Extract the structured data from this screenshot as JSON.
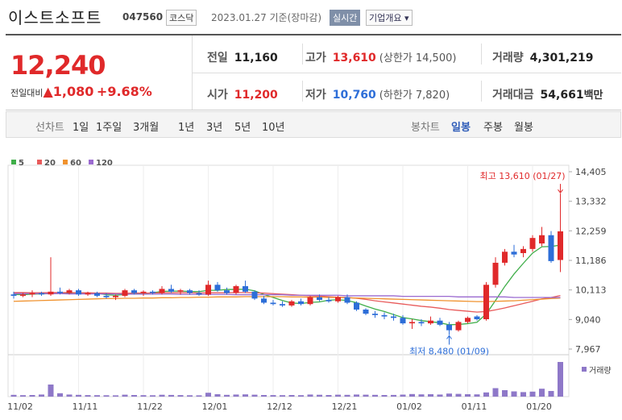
{
  "header": {
    "name": "이스트소프트",
    "code": "047560",
    "market": "코스닥",
    "date": "2023.01.27 기준(장마감)",
    "realtime": "실시간",
    "company": "기업개요"
  },
  "price": {
    "current": "12,240",
    "change_label": "전일대비",
    "change": "1,080",
    "change_pct": "+9.68%"
  },
  "stats": [
    [
      {
        "label": "전일",
        "value": "11,160"
      },
      {
        "label": "고가",
        "value": "13,610",
        "extra": "(상한가 14,500)"
      },
      {
        "label": "거래량",
        "value": "4,301,219"
      }
    ],
    [
      {
        "label": "시가",
        "value": "11,200"
      },
      {
        "label": "저가",
        "value": "10,760",
        "extra": "(하한가 7,820)"
      },
      {
        "label": "거래대금",
        "value": "54,661",
        "unit": "백만"
      }
    ]
  ],
  "tabs": {
    "line_label": "선차트",
    "line_periods": [
      "1일",
      "1주일",
      "3개월",
      "1년",
      "3년",
      "5년",
      "10년"
    ],
    "candle_label": "봉차트",
    "candle_periods": [
      "일봉",
      "주봉",
      "월봉"
    ]
  },
  "chart_data": {
    "type": "candlestick",
    "up_color": "#e0292a",
    "down_color": "#2d6ed8",
    "categories": [
      "11/02",
      null,
      null,
      null,
      null,
      null,
      null,
      "11/11",
      null,
      null,
      null,
      null,
      null,
      null,
      "11/22",
      null,
      null,
      null,
      null,
      null,
      null,
      "12/01",
      null,
      null,
      null,
      null,
      null,
      null,
      "12/12",
      null,
      null,
      null,
      null,
      null,
      null,
      "12/21",
      null,
      null,
      null,
      null,
      null,
      null,
      "01/02",
      null,
      null,
      null,
      null,
      null,
      null,
      "01/11",
      null,
      null,
      null,
      null,
      null,
      null,
      "01/20",
      null,
      null,
      null
    ],
    "open": [
      9950,
      9900,
      9950,
      10000,
      9950,
      10050,
      10000,
      10100,
      9950,
      10000,
      9900,
      9850,
      9900,
      10100,
      10000,
      10050,
      10000,
      10150,
      10050,
      10100,
      10000,
      9950,
      10300,
      10100,
      10000,
      10250,
      10050,
      9800,
      9650,
      9600,
      9550,
      9700,
      9600,
      9850,
      9750,
      9700,
      9850,
      9650,
      9400,
      9250,
      9200,
      9150,
      9100,
      8900,
      8950,
      8900,
      9000,
      8850,
      8650,
      8950,
      9150,
      9050,
      10300,
      11100,
      11500,
      11450,
      11600,
      11800,
      12100,
      11200
    ],
    "high": [
      10050,
      10000,
      10100,
      10050,
      11300,
      10200,
      10150,
      10150,
      10050,
      10050,
      10000,
      9950,
      10150,
      10150,
      10100,
      10100,
      10250,
      10300,
      10150,
      10150,
      10100,
      10450,
      10400,
      10200,
      10300,
      10450,
      10100,
      9900,
      9750,
      9700,
      9750,
      9800,
      9900,
      9950,
      9850,
      9900,
      9950,
      9700,
      9450,
      9350,
      9300,
      9250,
      9200,
      9050,
      9050,
      9150,
      9100,
      8950,
      9000,
      9150,
      9200,
      10400,
      11300,
      11600,
      11750,
      11700,
      12100,
      12400,
      12250,
      13610
    ],
    "low": [
      9800,
      9850,
      9850,
      9900,
      9900,
      9950,
      9950,
      9900,
      9900,
      9850,
      9800,
      9750,
      9850,
      9950,
      9900,
      9950,
      9950,
      10000,
      9950,
      9950,
      9900,
      9900,
      10050,
      9950,
      9950,
      10000,
      9750,
      9600,
      9550,
      9500,
      9500,
      9550,
      9550,
      9700,
      9650,
      9650,
      9600,
      9350,
      9200,
      9100,
      9050,
      9000,
      8850,
      8700,
      8800,
      8850,
      8800,
      8480,
      8600,
      8900,
      9000,
      9000,
      10200,
      11000,
      11300,
      11300,
      11500,
      11700,
      11100,
      10760
    ],
    "close": [
      9900,
      9950,
      10000,
      9950,
      10050,
      10000,
      10100,
      9950,
      10000,
      9900,
      9850,
      9900,
      10100,
      10000,
      10050,
      10000,
      10150,
      10050,
      10100,
      10000,
      9950,
      10300,
      10100,
      10000,
      10250,
      10050,
      9800,
      9650,
      9600,
      9550,
      9700,
      9600,
      9850,
      9750,
      9700,
      9850,
      9650,
      9400,
      9250,
      9200,
      9150,
      9100,
      8900,
      8950,
      8900,
      9000,
      8850,
      8650,
      8950,
      9100,
      9050,
      10300,
      11100,
      11500,
      11400,
      11600,
      12000,
      12100,
      11160,
      12240
    ],
    "volume": [
      220000,
      180000,
      200000,
      260000,
      1500000,
      420000,
      260000,
      220000,
      190000,
      180000,
      170000,
      160000,
      240000,
      200000,
      180000,
      170000,
      230000,
      210000,
      190000,
      170000,
      160000,
      480000,
      300000,
      220000,
      260000,
      280000,
      240000,
      200000,
      190000,
      180000,
      200000,
      180000,
      260000,
      230000,
      200000,
      240000,
      220000,
      260000,
      240000,
      220000,
      200000,
      210000,
      250000,
      320000,
      280000,
      300000,
      260000,
      380000,
      340000,
      300000,
      280000,
      520000,
      1050000,
      800000,
      650000,
      560000,
      620000,
      980000,
      700000,
      4301219
    ],
    "volume_ylim": [
      0,
      4500000
    ],
    "volume_label": "거래량",
    "series": [
      {
        "name": "5",
        "color": "#3fae49",
        "values": [
          9950,
          9940,
          9960,
          9970,
          9980,
          9990,
          10010,
          10010,
          10000,
          9990,
          9940,
          9920,
          9950,
          9970,
          9980,
          10010,
          10060,
          10070,
          10070,
          10060,
          10050,
          10100,
          10100,
          10130,
          10130,
          10140,
          10080,
          9950,
          9840,
          9730,
          9640,
          9620,
          9660,
          9680,
          9740,
          9760,
          9730,
          9650,
          9530,
          9420,
          9330,
          9220,
          9110,
          9060,
          9000,
          8960,
          8920,
          8850,
          8860,
          8890,
          8940,
          9240,
          9730,
          10240,
          10690,
          11080,
          11450,
          11680,
          11690,
          11740
        ]
      },
      {
        "name": "20",
        "color": "#e85b5b",
        "values": [
          10020,
          10020,
          10010,
          10010,
          10020,
          10020,
          10020,
          10010,
          10010,
          10000,
          10000,
          9990,
          9990,
          10000,
          10000,
          10000,
          10010,
          10010,
          10010,
          10010,
          10000,
          10010,
          10010,
          10010,
          10020,
          10020,
          10010,
          10000,
          9980,
          9960,
          9940,
          9920,
          9900,
          9890,
          9870,
          9850,
          9840,
          9810,
          9770,
          9720,
          9680,
          9640,
          9600,
          9560,
          9520,
          9490,
          9450,
          9400,
          9370,
          9340,
          9310,
          9330,
          9390,
          9460,
          9540,
          9620,
          9700,
          9790,
          9840,
          9910
        ]
      },
      {
        "name": "60",
        "color": "#f0922e",
        "values": [
          9700,
          9710,
          9720,
          9730,
          9740,
          9750,
          9760,
          9770,
          9780,
          9790,
          9800,
          9800,
          9810,
          9810,
          9820,
          9820,
          9830,
          9830,
          9840,
          9840,
          9850,
          9850,
          9860,
          9860,
          9860,
          9870,
          9870,
          9870,
          9870,
          9870,
          9860,
          9860,
          9850,
          9850,
          9840,
          9840,
          9830,
          9820,
          9810,
          9800,
          9790,
          9780,
          9770,
          9760,
          9750,
          9740,
          9730,
          9720,
          9710,
          9700,
          9690,
          9690,
          9700,
          9710,
          9720,
          9740,
          9760,
          9780,
          9800,
          9820
        ]
      },
      {
        "name": "120",
        "color": "#9b6ad0",
        "values": [
          9980,
          9980,
          9980,
          9980,
          9980,
          9980,
          9970,
          9970,
          9970,
          9970,
          9970,
          9970,
          9960,
          9960,
          9960,
          9960,
          9960,
          9960,
          9950,
          9950,
          9950,
          9950,
          9950,
          9950,
          9940,
          9940,
          9940,
          9940,
          9940,
          9940,
          9920,
          9920,
          9920,
          9920,
          9920,
          9920,
          9900,
          9900,
          9900,
          9900,
          9900,
          9900,
          9880,
          9880,
          9880,
          9880,
          9880,
          9880,
          9860,
          9860,
          9860,
          9860,
          9860,
          9860,
          9840,
          9840,
          9840,
          9840,
          9840,
          9840
        ]
      }
    ],
    "ylim": [
      7967,
      14405
    ],
    "yticks": [
      {
        "value": 14405,
        "label": "14,405"
      },
      {
        "value": 13332,
        "label": "13,332"
      },
      {
        "value": 12259,
        "label": "12,259"
      },
      {
        "value": 11186,
        "label": "11,186"
      },
      {
        "value": 10113,
        "label": "10,113"
      },
      {
        "value": 9040,
        "label": "9,040"
      },
      {
        "value": 7967,
        "label": "7,967"
      }
    ],
    "annotations": [
      {
        "text": "최고 13,610 (01/27)",
        "index": 59
      },
      {
        "text": "최저 8,480 (01/09)",
        "index": 47
      }
    ]
  }
}
